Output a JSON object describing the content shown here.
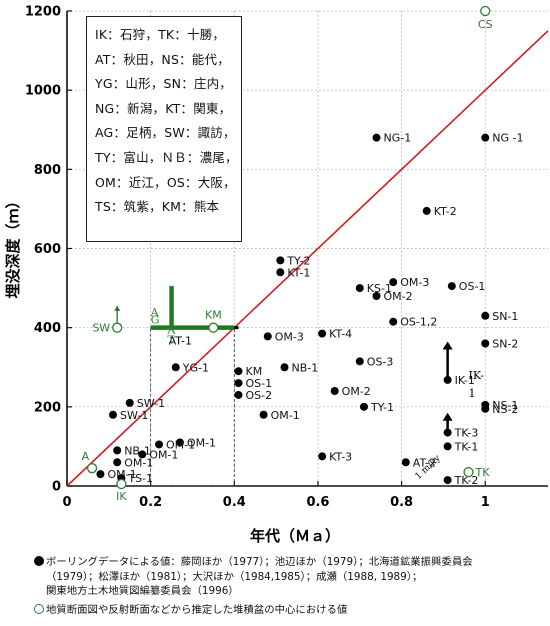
{
  "chart_data": {
    "type": "scatter",
    "xlabel": "年代（Ｍａ）",
    "ylabel": "埋没深度（ｍ）",
    "xlim": [
      0,
      1.15
    ],
    "ylim": [
      0,
      1200
    ],
    "x_ticks": [
      {
        "v": 0,
        "label": "0"
      },
      {
        "v": 0.2,
        "label": "0.2"
      },
      {
        "v": 0.4,
        "label": "0.4"
      },
      {
        "v": 0.6,
        "label": "0.6"
      },
      {
        "v": 0.8,
        "label": "0.8"
      },
      {
        "v": 1,
        "label": "1"
      }
    ],
    "y_ticks": [
      {
        "v": 0,
        "label": "0"
      },
      {
        "v": 200,
        "label": "200"
      },
      {
        "v": 400,
        "label": "400"
      },
      {
        "v": 600,
        "label": "600"
      },
      {
        "v": 800,
        "label": "800"
      },
      {
        "v": 1000,
        "label": "1000"
      },
      {
        "v": 1200,
        "label": "1200"
      }
    ],
    "grid": true,
    "reference_line": {
      "label": "1 m/ky",
      "x": [
        0,
        1.15
      ],
      "y": [
        0,
        1150
      ],
      "color": "#d11f1f"
    },
    "series": [
      {
        "marker": "filled",
        "color": "#000000",
        "points": [
          {
            "x": 0.74,
            "y": 880,
            "label": "NG-1"
          },
          {
            "x": 1.0,
            "y": 880,
            "label": "NG -1"
          },
          {
            "x": 0.86,
            "y": 695,
            "label": "KT-2"
          },
          {
            "x": 0.51,
            "y": 570,
            "label": "TY-2"
          },
          {
            "x": 0.51,
            "y": 540,
            "label": "KT-1"
          },
          {
            "x": 0.7,
            "y": 500,
            "label": "KS-1"
          },
          {
            "x": 0.78,
            "y": 515,
            "label": "OM-3"
          },
          {
            "x": 0.74,
            "y": 480,
            "label": "OM-2"
          },
          {
            "x": 0.92,
            "y": 505,
            "label": "OS-1"
          },
          {
            "x": 1.0,
            "y": 430,
            "label": "SN-1"
          },
          {
            "x": 0.78,
            "y": 415,
            "label": "OS-1,2"
          },
          {
            "x": 0.61,
            "y": 385,
            "label": "KT-4"
          },
          {
            "x": 0.48,
            "y": 378,
            "label": "OM-3"
          },
          {
            "x": 1.0,
            "y": 360,
            "label": "SN-2"
          },
          {
            "x": 0.7,
            "y": 315,
            "label": "OS-3"
          },
          {
            "x": 0.52,
            "y": 300,
            "label": "NB-1"
          },
          {
            "x": 0.41,
            "y": 290,
            "label": "KM"
          },
          {
            "x": 0.41,
            "y": 260,
            "label": "OS-1"
          },
          {
            "x": 0.41,
            "y": 230,
            "label": "OS-2"
          },
          {
            "x": 0.64,
            "y": 240,
            "label": "OM-2"
          },
          {
            "x": 0.71,
            "y": 200,
            "label": "TY-1"
          },
          {
            "x": 0.47,
            "y": 180,
            "label": "OM-1"
          },
          {
            "x": 0.26,
            "y": 300,
            "label": "YG-1"
          },
          {
            "x": 0.11,
            "y": 180,
            "label": "SW-1"
          },
          {
            "x": 0.15,
            "y": 210,
            "label": "SW-1"
          },
          {
            "x": 0.27,
            "y": 110,
            "label": "OM-1"
          },
          {
            "x": 0.22,
            "y": 105,
            "label": "OM-1"
          },
          {
            "x": 0.12,
            "y": 90,
            "label": "NB-1"
          },
          {
            "x": 0.18,
            "y": 80,
            "label": "OM-1"
          },
          {
            "x": 0.12,
            "y": 60,
            "label": "OM-1"
          },
          {
            "x": 0.08,
            "y": 30,
            "label": "OM-1"
          },
          {
            "x": 0.13,
            "y": 20,
            "label": "TS-1"
          },
          {
            "x": 0.61,
            "y": 75,
            "label": "KT-3"
          },
          {
            "x": 0.81,
            "y": 60,
            "label": "AT-2"
          },
          {
            "x": 0.91,
            "y": 268,
            "label": "IK-1"
          },
          {
            "x": 0.91,
            "y": 135,
            "label": "TK-3"
          },
          {
            "x": 0.91,
            "y": 100,
            "label": "TK-1"
          },
          {
            "x": 0.91,
            "y": 15,
            "label": "TK-2"
          },
          {
            "x": 1.0,
            "y": 205,
            "label": "NS-1"
          },
          {
            "x": 1.0,
            "y": 195,
            "label": "NS-2"
          }
        ]
      },
      {
        "marker": "open",
        "color": "#2e7d32",
        "points": [
          {
            "x": 1.0,
            "y": 1200,
            "label": "CS"
          },
          {
            "x": 0.12,
            "y": 400,
            "label": "SW"
          },
          {
            "x": 0.35,
            "y": 400,
            "label": "KM"
          },
          {
            "x": 0.06,
            "y": 45,
            "label": "A"
          },
          {
            "x": 0.13,
            "y": 5,
            "label": "IK"
          },
          {
            "x": 0.96,
            "y": 35,
            "label": "TK"
          }
        ]
      }
    ],
    "green_bars": [
      {
        "type": "h",
        "x1": 0.2,
        "x2": 0.4,
        "y": 400,
        "label": "AT"
      },
      {
        "type": "v",
        "x": 0.25,
        "y1": 400,
        "y2": 505,
        "label": ""
      },
      {
        "type": "v",
        "x": 0.12,
        "y1": 400,
        "y2": 455,
        "label": ""
      }
    ],
    "black_bar": {
      "x1": 0.2,
      "x2": 0.41,
      "y": 400,
      "label": "AT-1"
    },
    "dashed_box": {
      "x1": 0.2,
      "x2": 0.4,
      "y1": 0,
      "y2": 400
    },
    "arrows": [
      {
        "x": 0.91,
        "y1": 268,
        "y2": 365
      },
      {
        "x": 0.91,
        "y1": 135,
        "y2": 185
      }
    ],
    "text_labels": [
      {
        "x": 0.2,
        "y": 430,
        "text": "A",
        "vertical": false,
        "color": "#2e7d32"
      },
      {
        "x": 0.2,
        "y": 410,
        "text": "G",
        "vertical": false,
        "color": "#2e7d32"
      },
      {
        "x": 0.24,
        "y": 385,
        "text": "A",
        "vertical": false,
        "color": "#2e7d32"
      },
      {
        "x": 0.24,
        "y": 360,
        "text": "T",
        "vertical": false,
        "color": "#2e7d32"
      },
      {
        "x": 0.96,
        "y": 270,
        "text": "IK-",
        "vertical": false,
        "color": "#000"
      },
      {
        "x": 0.96,
        "y": 225,
        "text": "1",
        "vertical": false,
        "color": "#000"
      }
    ]
  },
  "legend": {
    "lines": [
      "IK：石狩，TK：十勝，",
      "AT：秋田，NS：能代，",
      "YG：山形，SN：庄内，",
      "NG：新潟，KT：関東，",
      "AG：足柄，SW：諏訪，",
      "TY：富山，ＮＢ：濃尾，",
      "OM：近江，OS：大阪，",
      "TS：筑紫，KM：熊本"
    ]
  },
  "notes": {
    "filled_note_lines": [
      "ボーリングデータによる値：藤岡ほか（1977）；池辺ほか（1979）；北海道鉱業振興委員会",
      "（1979）；松澤ほか（1981）；大沢ほか（1984,1985）；成瀬（1988, 1989）；",
      "関東地方土木地質図編纂委員会（1996）"
    ],
    "open_note": "地質断面図や反射断面などから推定した堆積盆の中心における値"
  }
}
